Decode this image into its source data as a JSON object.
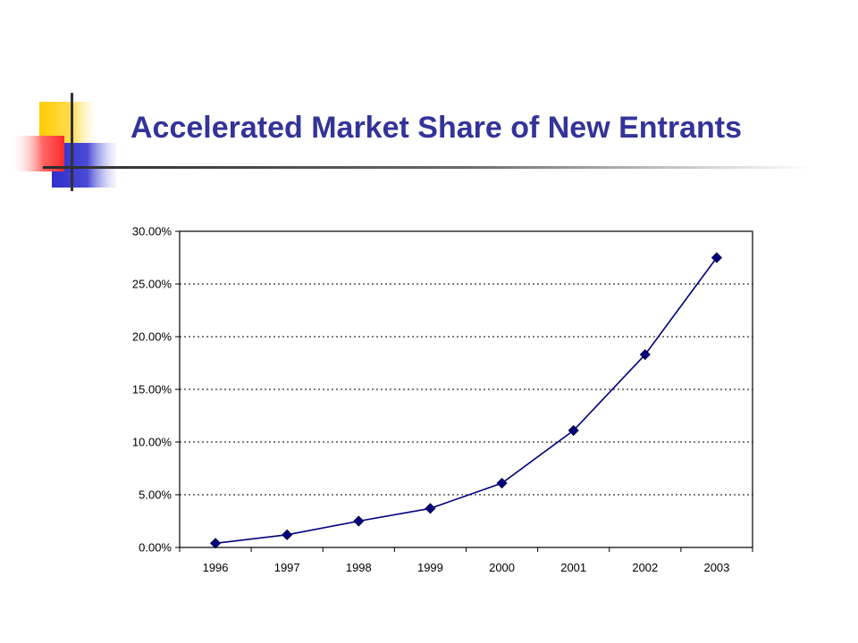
{
  "slide": {
    "title": "Accelerated Market Share of New Entrants",
    "accent_colors": {
      "yellow": "#ffcc00",
      "red": "#ff3333",
      "blue": "#3333cc",
      "title": "#333399"
    }
  },
  "chart_data": {
    "type": "line",
    "title": "",
    "xlabel": "",
    "ylabel": "",
    "categories": [
      "1996",
      "1997",
      "1998",
      "1999",
      "2000",
      "2001",
      "2002",
      "2003"
    ],
    "series": [
      {
        "values": [
          0.4,
          1.2,
          2.5,
          3.7,
          6.1,
          11.1,
          18.3,
          27.5
        ],
        "color": "#000080",
        "marker": "diamond"
      }
    ],
    "ylim": [
      0,
      30
    ],
    "yticks": [
      0,
      5,
      10,
      15,
      20,
      25,
      30
    ],
    "ytick_labels": [
      "0.00%",
      "5.00%",
      "10.00%",
      "15.00%",
      "20.00%",
      "25.00%",
      "30.00%"
    ],
    "grid": true,
    "grid_style": "dotted",
    "legend": "none"
  }
}
